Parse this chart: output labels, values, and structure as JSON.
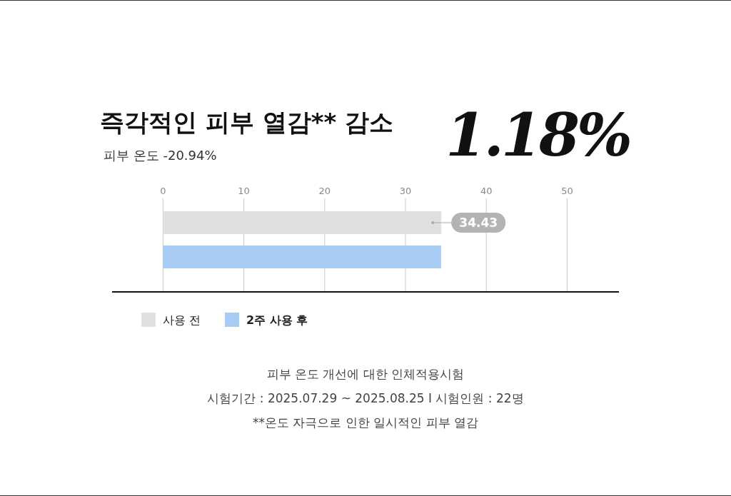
{
  "chart_data": {
    "type": "bar",
    "orientation": "horizontal",
    "title": "즉각적인 피부 열감** 감소",
    "subtitle": "피부 온도 -20.94%",
    "categories": [
      null
    ],
    "series": [
      {
        "name": "사용 전",
        "color": "#e0e0e0",
        "values": [
          34.43
        ],
        "value_labels": [
          "34.43"
        ]
      },
      {
        "name": "2주 사용 후",
        "color": "#a8cbf3",
        "values": [
          34.4
        ],
        "value_labels": [
          null
        ]
      }
    ],
    "xlim": [
      -6.3,
      56.4
    ],
    "xticks": [
      0,
      10,
      20,
      30,
      40,
      50
    ],
    "grid": "x",
    "legend": "bottom left",
    "annotations": [
      "1.18%",
      "피부 온도 개선에 대한 인체적용시험",
      "시험기간 : 2025.07.29 ~ 2025.08.25 I 시험인원 : 22명",
      "**온도 자극으로 인한 일시적인 피부 열감"
    ]
  }
}
